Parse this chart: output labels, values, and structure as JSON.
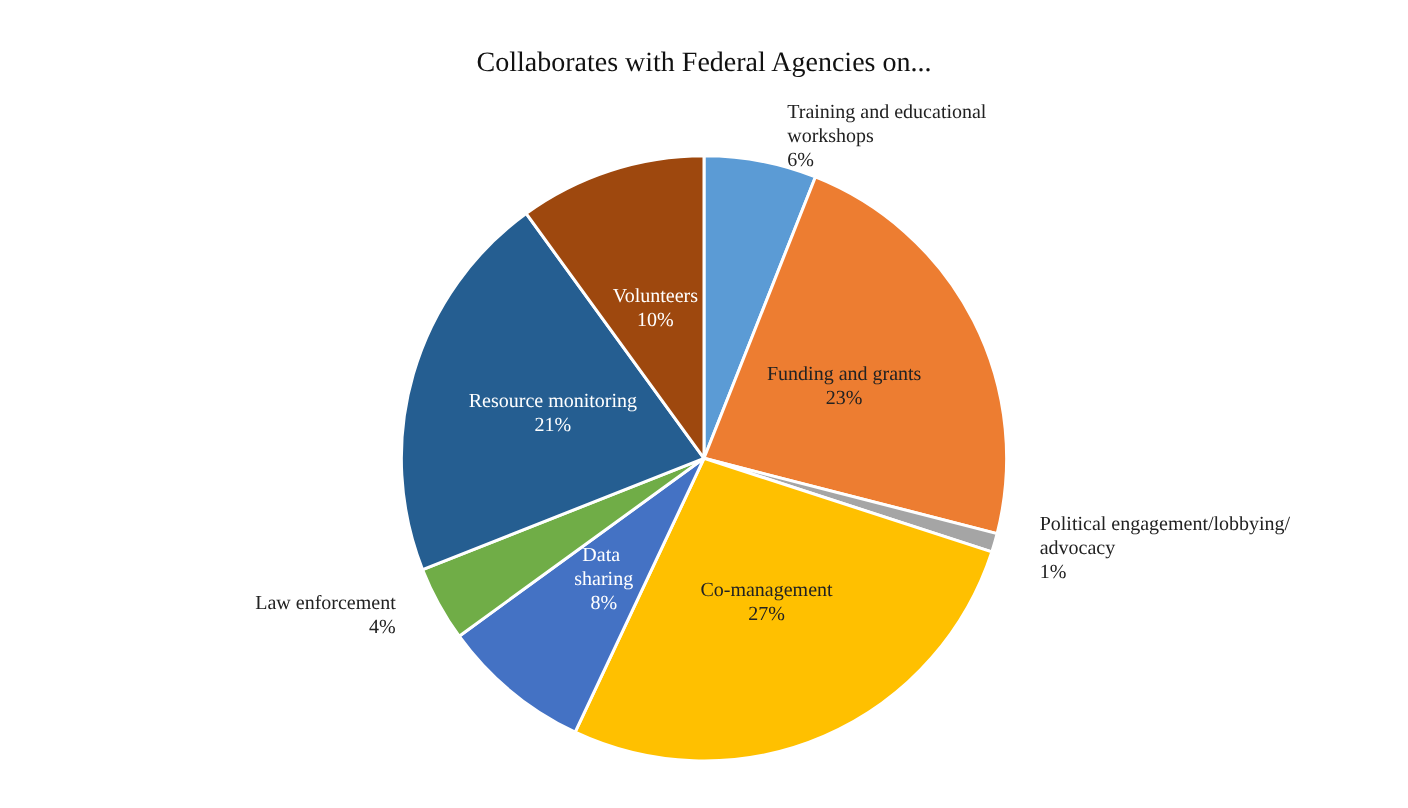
{
  "chart_data": {
    "type": "pie",
    "title": "Collaborates with Federal Agencies on...",
    "categories": [
      "Training and educational workshops",
      "Funding and grants",
      "Political engagement/lobbying/advocacy",
      "Co-management",
      "Data sharing",
      "Law enforcement",
      "Resource monitoring",
      "Volunteers"
    ],
    "values": [
      6,
      23,
      1,
      27,
      8,
      4,
      21,
      10
    ],
    "value_labels": [
      "6%",
      "23%",
      "1%",
      "27%",
      "8%",
      "4%",
      "21%",
      "10%"
    ],
    "colors": [
      "#5b9bd5",
      "#ed7d31",
      "#a5a5a5",
      "#ffc000",
      "#4472c4",
      "#70ad47",
      "#255e91",
      "#9e480e"
    ],
    "legend": false
  }
}
